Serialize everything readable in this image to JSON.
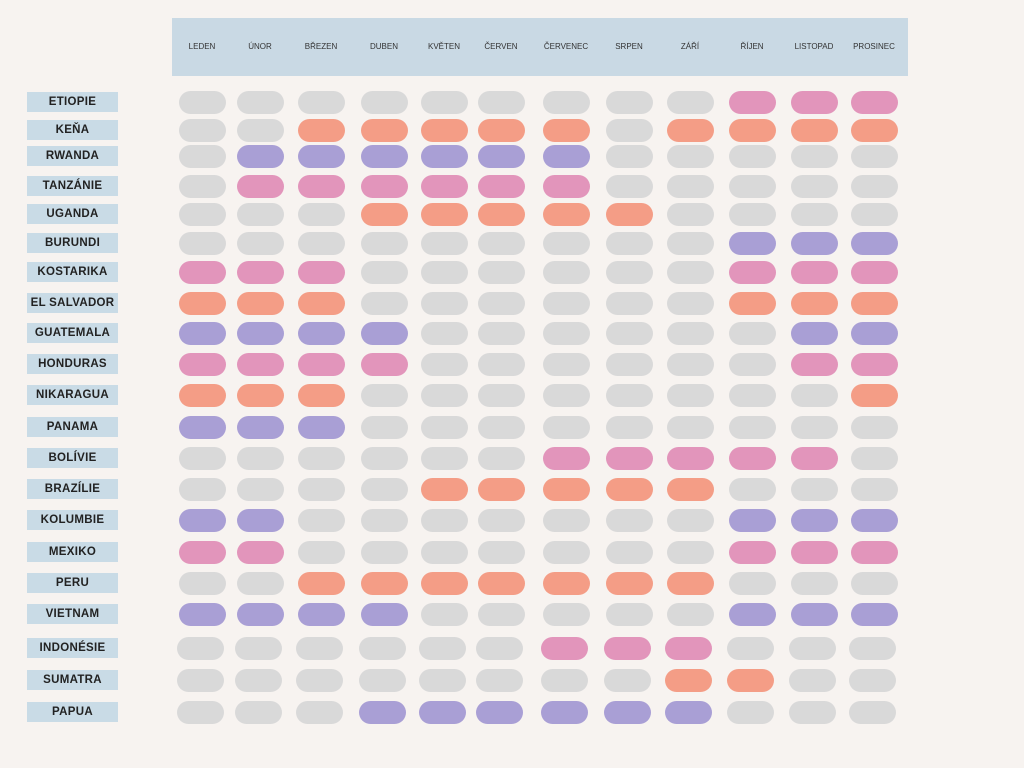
{
  "months": [
    "LEDEN",
    "ÚNOR",
    "BŘEZEN",
    "DUBEN",
    "KVĚTEN",
    "ČERVEN",
    "ČERVENEC",
    "SRPEN",
    "ZÁŘÍ",
    "ŘÍJEN",
    "LISTOPAD",
    "PROSINEC"
  ],
  "colors": {
    "G": "#d9d9d9",
    "P": "#e295bb",
    "O": "#f49d86",
    "V": "#a99fd5"
  },
  "countries": [
    {
      "name": "ETIOPIE",
      "months": "GGGGGGGGGPPP"
    },
    {
      "name": "KEŇA",
      "months": "GGOOOOOGOOOO"
    },
    {
      "name": "RWANDA",
      "months": "GVVVVVVGGGGG"
    },
    {
      "name": "TANZÁNIE",
      "months": "GPPPPPPGGGGG"
    },
    {
      "name": "UGANDA",
      "months": "GGGOOOOOGGGG"
    },
    {
      "name": "BURUNDI",
      "months": "GGGGGGGGGVVV"
    },
    {
      "name": "KOSTARIKA",
      "months": "PPPGGGGGGPPP"
    },
    {
      "name": "EL SALVADOR",
      "months": "OOOGGGGGGOOO"
    },
    {
      "name": "GUATEMALA",
      "months": "VVVVGGGGGGVV"
    },
    {
      "name": "HONDURAS",
      "months": "PPPPGGGGGGPP"
    },
    {
      "name": "NIKARAGUA",
      "months": "OOOGGGGGGGGO"
    },
    {
      "name": "PANAMA",
      "months": "VVVGGGGGGGGG"
    },
    {
      "name": "BOLÍVIE",
      "months": "GGGGGGPPPPPG"
    },
    {
      "name": "BRAZÍLIE",
      "months": "GGGGOOOOOGGG"
    },
    {
      "name": "KOLUMBIE",
      "months": "VVGGGGGGGVVV"
    },
    {
      "name": "MEXIKO",
      "months": "PPGGGGGGGPPP"
    },
    {
      "name": "PERU",
      "months": "GGOOOOOOOGGG"
    },
    {
      "name": "VIETNAM",
      "months": "VVVVGGGGGVVV"
    },
    {
      "name": "INDONÉSIE",
      "months": "GGGGGGPPPGGG"
    },
    {
      "name": "SUMATRA",
      "months": "GGGGGGGGOOGG"
    },
    {
      "name": "PAPUA",
      "months": "GGGVVVVVVGGG"
    }
  ]
}
